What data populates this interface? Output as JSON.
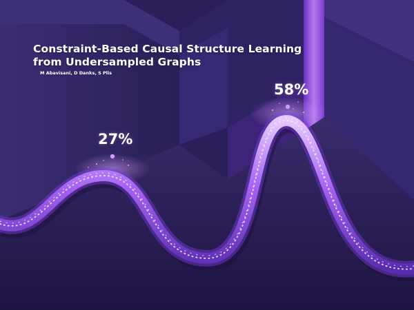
{
  "title": "Constraint-Based Causal Structure Learning from Undersampled Graphs",
  "authors": "M Abavisani, D Danks, S Plis",
  "markers": [
    {
      "label": "27%"
    },
    {
      "label": "58%"
    }
  ],
  "colors": {
    "background": "#2a1d55",
    "accent": "#b26cf0",
    "curve": "#9b5cf0",
    "text": "#ffffff"
  }
}
